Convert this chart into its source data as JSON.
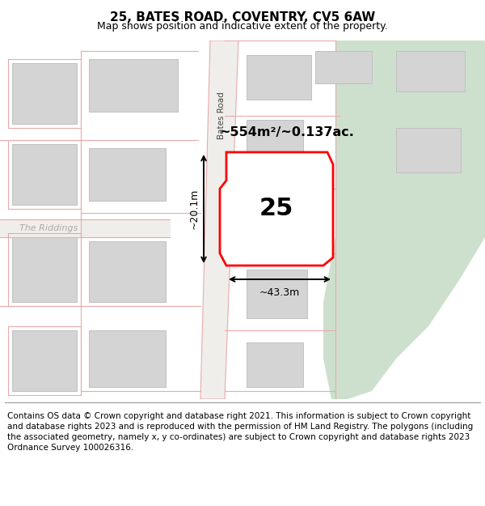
{
  "title": "25, BATES ROAD, COVENTRY, CV5 6AW",
  "subtitle": "Map shows position and indicative extent of the property.",
  "footer": "Contains OS data © Crown copyright and database right 2021. This information is subject to Crown copyright and database rights 2023 and is reproduced with the permission of HM Land Registry. The polygons (including the associated geometry, namely x, y co-ordinates) are subject to Crown copyright and database rights 2023 Ordnance Survey 100026316.",
  "map_bg": "#f7f6f2",
  "road_color": "#e8aaaa",
  "building_fill": "#d4d4d4",
  "building_edge": "#c0c0c0",
  "green_color": "#cde0cd",
  "highlight_color": "#ff0000",
  "road_label": "Bates Road",
  "street_label": "The Riddings",
  "area_label": "~554m²/~0.137ac.",
  "width_label": "~43.3m",
  "height_label": "~20.1m",
  "property_number": "25",
  "title_fontsize": 11,
  "subtitle_fontsize": 9,
  "footer_fontsize": 7.5
}
